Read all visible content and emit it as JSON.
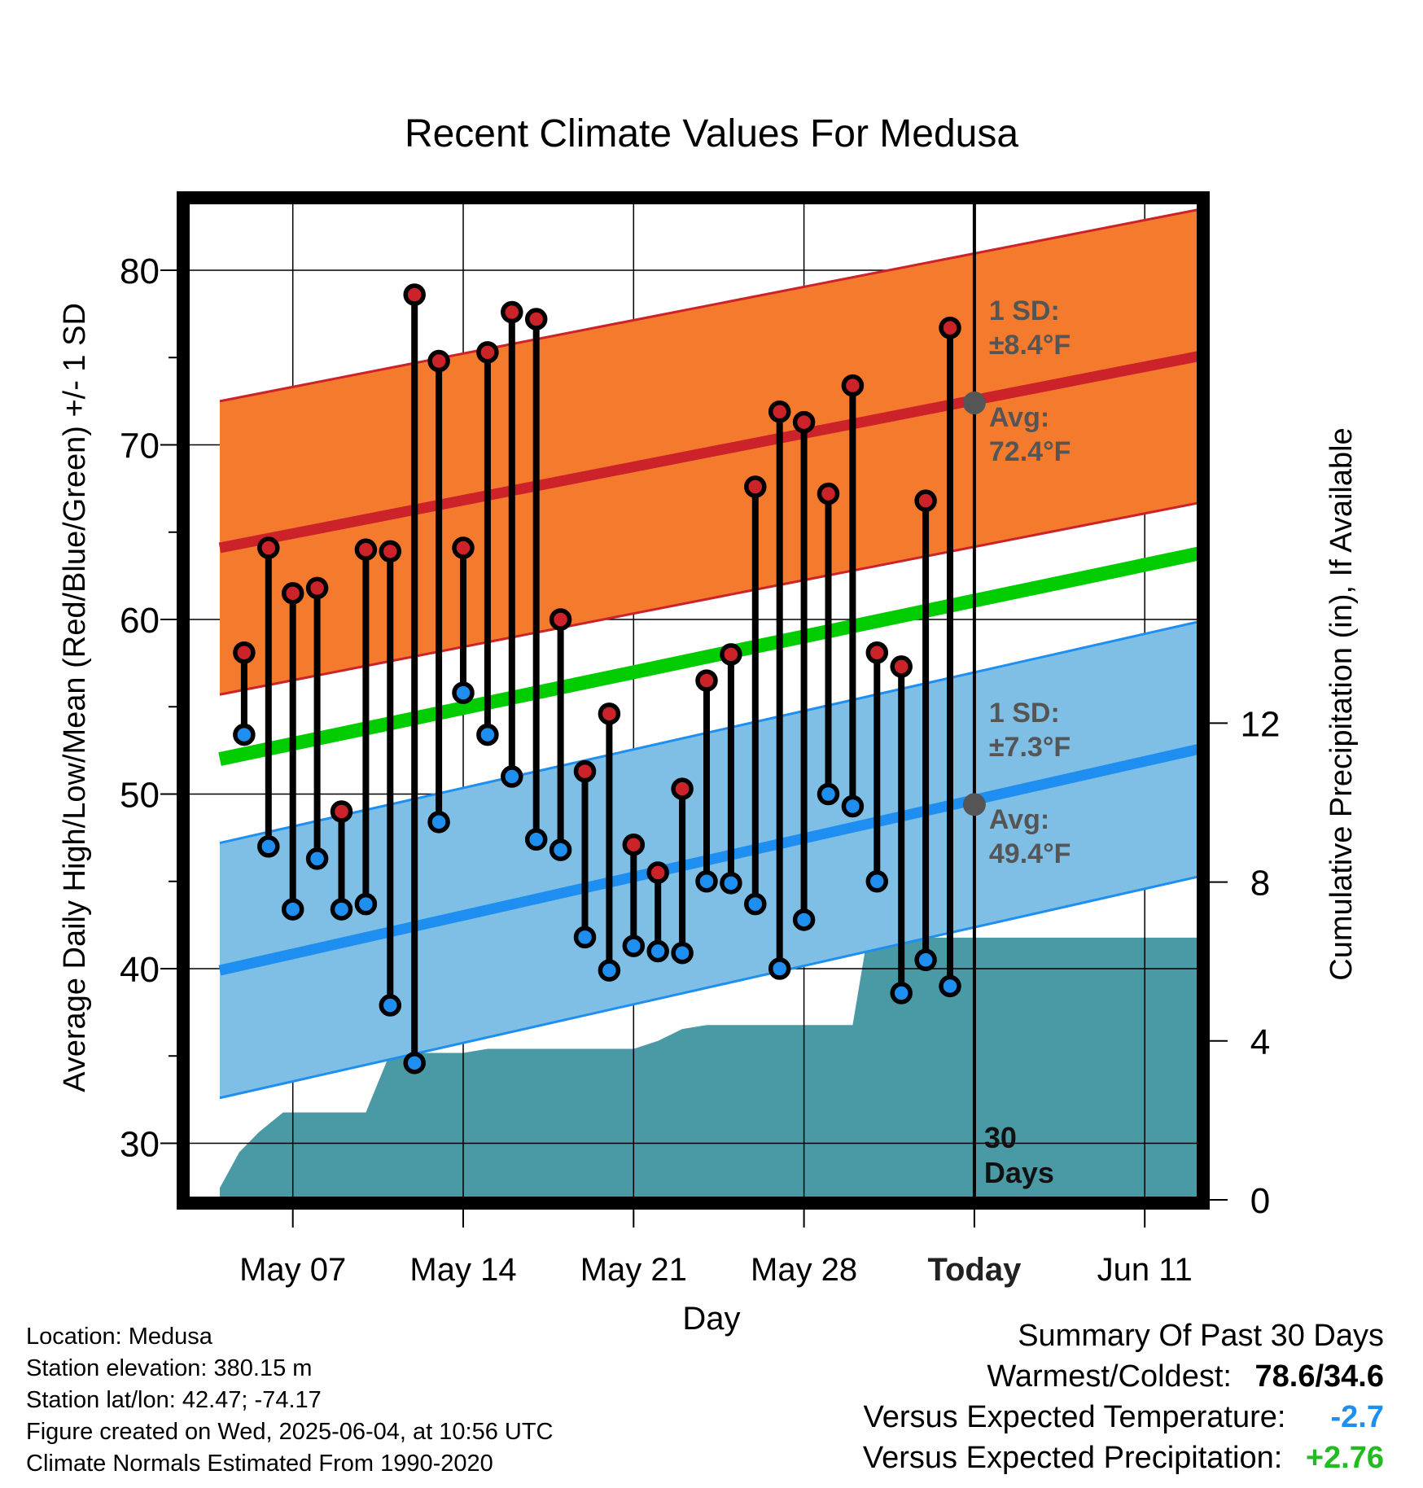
{
  "chart_data": {
    "type": "line",
    "title": "Recent Climate Values For Medusa",
    "xlabel": "Day",
    "ylabel_left": "Average Daily High/Low/Mean (Red/Blue/Green) +/- 1 SD",
    "ylabel_right": "Cumulative Precipitation (in), If Available",
    "x_tick_labels": [
      "May 07",
      "May 14",
      "May 21",
      "May 28",
      "Today",
      "Jun 11"
    ],
    "x_tick_days": [
      3,
      10,
      17,
      24,
      31,
      38
    ],
    "x_range_days": [
      0,
      40.3
    ],
    "y_left_range": [
      26.5,
      84
    ],
    "y_left_ticks": [
      "80",
      "70",
      "60",
      "50",
      "40",
      "30"
    ],
    "y_right_range": [
      0,
      19
    ],
    "y_right_ticks": [
      "12",
      "8",
      "4",
      "0"
    ],
    "grid": true,
    "days_axis_note": "day 0 = May 04, Today = Jun 04 (day 31)",
    "daily_high": [
      58.1,
      64.1,
      61.5,
      61.8,
      49.0,
      64.0,
      63.9,
      78.6,
      74.8,
      64.1,
      75.3,
      77.6,
      77.2,
      60.0,
      51.3,
      54.6,
      47.1,
      45.5,
      50.3,
      56.5,
      58.0,
      67.6,
      71.9,
      71.3,
      67.2,
      73.4,
      58.1,
      57.3,
      66.8,
      76.7
    ],
    "daily_low": [
      53.4,
      47.0,
      43.4,
      46.3,
      43.4,
      43.7,
      37.9,
      34.6,
      48.4,
      55.8,
      53.4,
      51.0,
      47.4,
      46.8,
      41.8,
      39.9,
      41.3,
      41.0,
      40.9,
      45.0,
      44.9,
      43.7,
      40.0,
      42.8,
      50.0,
      49.3,
      45.0,
      38.6,
      40.5,
      39.0
    ],
    "normal_high_start": 64.1,
    "normal_high_end": 75.1,
    "normal_high_sd": 8.4,
    "normal_low_start": 39.9,
    "normal_low_end": 52.6,
    "normal_low_sd": 7.3,
    "normal_mean_start": 52.0,
    "normal_mean_end": 63.8,
    "precip_x": [
      0,
      0.8,
      1.6,
      2.6,
      3.2,
      4.0,
      5.0,
      6.0,
      7.0,
      8.0,
      9.0,
      10.0,
      11.0,
      12.0,
      13.0,
      14.0,
      15.0,
      16.0,
      17.0,
      18.0,
      19.0,
      20.0,
      21.0,
      22.0,
      23.0,
      24.0,
      25.0,
      26.0,
      26.6,
      27.0,
      28.0,
      29.0,
      30.0,
      31.0,
      40.3
    ],
    "precip_y": [
      0.3,
      1.2,
      1.7,
      2.2,
      2.2,
      2.2,
      2.2,
      2.2,
      3.7,
      3.7,
      3.7,
      3.7,
      3.8,
      3.8,
      3.8,
      3.8,
      3.8,
      3.8,
      3.8,
      4.0,
      4.3,
      4.4,
      4.4,
      4.4,
      4.4,
      4.4,
      4.4,
      4.4,
      6.6,
      6.6,
      6.6,
      6.6,
      6.6,
      6.6,
      6.6
    ],
    "annotations": {
      "high_sd_label": "1 SD:",
      "high_sd_value": "±8.4°F",
      "high_avg_label": "Avg:",
      "high_avg_value": "72.4°F",
      "today_high_avg": 72.4,
      "low_sd_label": "1 SD:",
      "low_sd_value": "±7.3°F",
      "low_avg_label": "Avg:",
      "low_avg_value": "49.4°F",
      "today_low_avg": 49.4,
      "days_label_1": "30",
      "days_label_2": "Days"
    },
    "colors": {
      "high_band": "#f47a2e",
      "high_line": "#cc2229",
      "low_band": "#7fbfe5",
      "low_line": "#1e8ff0",
      "mean_line": "#00cc00",
      "precip": "#4a9aa5",
      "high_dot": "#cc2229",
      "low_dot": "#1e8ff0",
      "today_dot": "#555555",
      "annotation": "#555555"
    }
  },
  "footer": {
    "location": "Location: Medusa",
    "elevation": "Station elevation: 380.15 m",
    "latlon": "Station lat/lon: 42.47; -74.17",
    "created": "Figure created on Wed, 2025-06-04, at 10:56 UTC",
    "normals": "Climate Normals Estimated From 1990-2020"
  },
  "summary": {
    "title": "Summary Of Past 30 Days",
    "warm_cold_label": "Warmest/Coldest:",
    "warm_cold_value": "78.6/34.6",
    "temp_label": "Versus Expected Temperature:",
    "temp_value": "-2.7",
    "temp_color": "#1e8ff0",
    "precip_label": "Versus Expected Precipitation:",
    "precip_value": "+2.76",
    "precip_color": "#22bb22"
  }
}
